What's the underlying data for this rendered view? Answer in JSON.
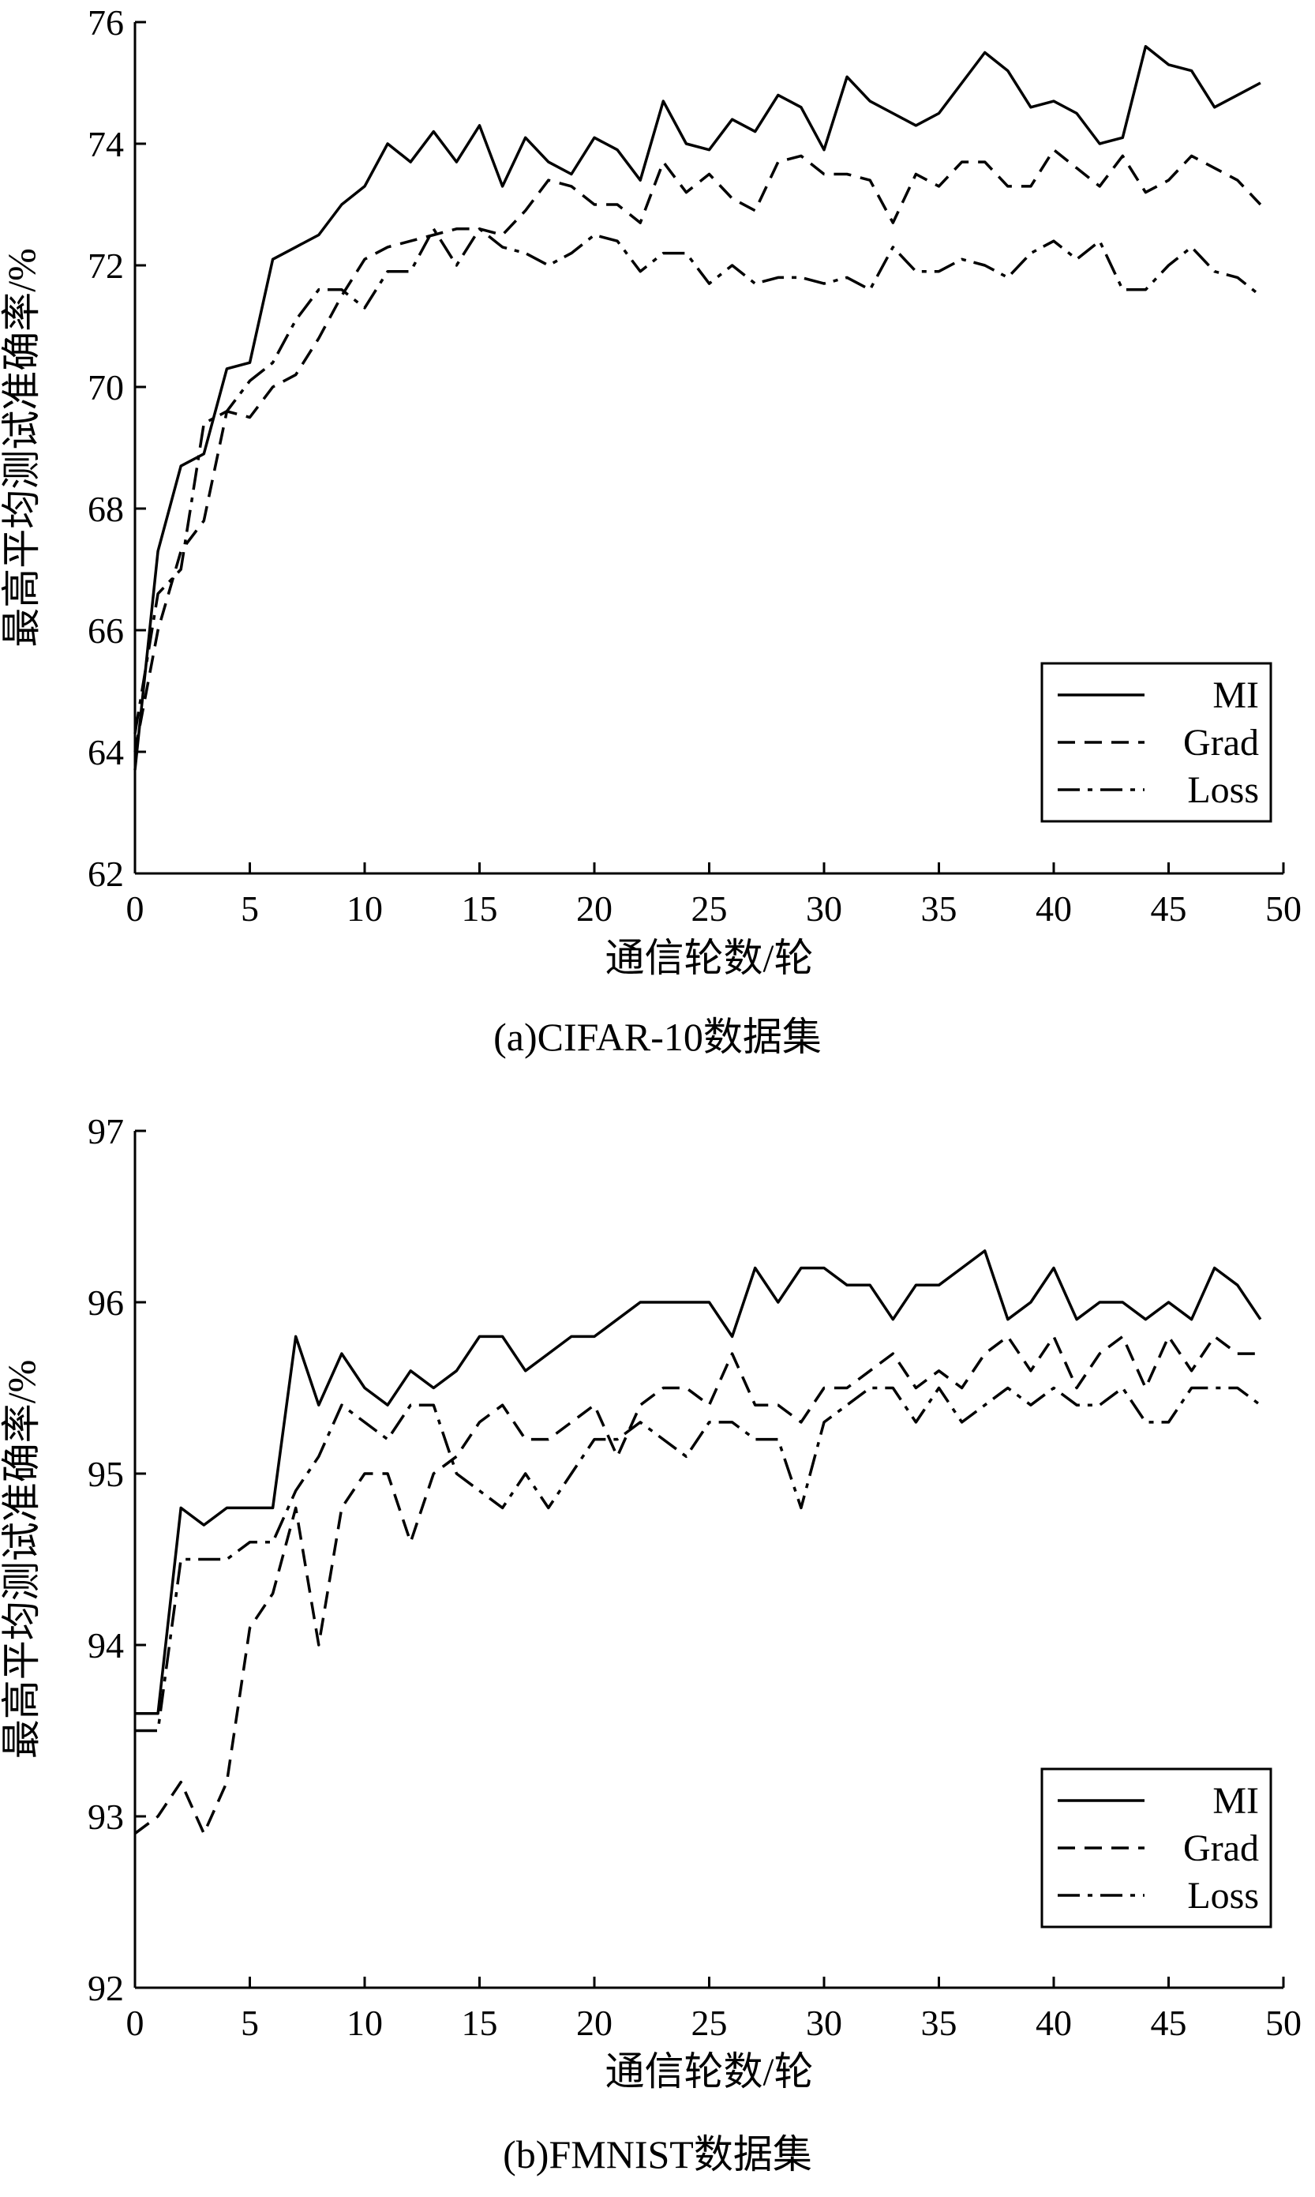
{
  "chart_data": [
    {
      "type": "line",
      "caption": "(a)CIFAR-10数据集",
      "xlabel": "通信轮数/轮",
      "ylabel": "最高平均测试准确率/%",
      "xlim": [
        0,
        50
      ],
      "ylim": [
        62,
        76
      ],
      "xticks": [
        "0",
        "5",
        "10",
        "15",
        "20",
        "25",
        "30",
        "35",
        "40",
        "45",
        "50"
      ],
      "yticks": [
        "62",
        "64",
        "66",
        "68",
        "70",
        "72",
        "74",
        "76"
      ],
      "legend_position": "bottom-right",
      "series": [
        {
          "name": "MI",
          "style": "solid",
          "values": [
            63.7,
            67.3,
            68.7,
            68.9,
            70.3,
            70.4,
            72.1,
            72.3,
            72.5,
            73.0,
            73.3,
            74.0,
            73.7,
            74.2,
            73.7,
            74.3,
            73.3,
            74.1,
            73.7,
            73.5,
            74.1,
            73.9,
            73.4,
            74.7,
            74.0,
            73.9,
            74.4,
            74.2,
            74.8,
            74.6,
            73.9,
            75.1,
            74.7,
            74.5,
            74.3,
            74.5,
            75.0,
            75.5,
            75.2,
            74.6,
            74.7,
            74.5,
            74.0,
            74.1,
            75.6,
            75.3,
            75.2,
            74.6,
            74.8,
            75.0
          ]
        },
        {
          "name": "Grad",
          "style": "dashed",
          "values": [
            64.0,
            66.0,
            67.3,
            67.8,
            69.6,
            69.5,
            70.0,
            70.2,
            70.8,
            71.5,
            72.1,
            72.3,
            72.4,
            72.5,
            72.6,
            72.6,
            72.5,
            72.9,
            73.4,
            73.3,
            73.0,
            73.0,
            72.7,
            73.7,
            73.2,
            73.5,
            73.1,
            72.9,
            73.7,
            73.8,
            73.5,
            73.5,
            73.4,
            72.7,
            73.5,
            73.3,
            73.7,
            73.7,
            73.3,
            73.3,
            73.9,
            73.6,
            73.3,
            73.8,
            73.2,
            73.4,
            73.8,
            73.6,
            73.4,
            73.0
          ]
        },
        {
          "name": "Loss",
          "style": "dashdot",
          "values": [
            64.3,
            66.6,
            67.0,
            69.4,
            69.6,
            70.1,
            70.4,
            71.1,
            71.6,
            71.6,
            71.3,
            71.9,
            71.9,
            72.6,
            72.0,
            72.6,
            72.3,
            72.2,
            72.0,
            72.2,
            72.5,
            72.4,
            71.9,
            72.2,
            72.2,
            71.7,
            72.0,
            71.7,
            71.8,
            71.8,
            71.7,
            71.8,
            71.6,
            72.3,
            71.9,
            71.9,
            72.1,
            72.0,
            71.8,
            72.2,
            72.4,
            72.1,
            72.4,
            71.6,
            71.6,
            72.0,
            72.3,
            71.9,
            71.8,
            71.5
          ]
        }
      ]
    },
    {
      "type": "line",
      "caption": "(b)FMNIST数据集",
      "xlabel": "通信轮数/轮",
      "ylabel": "最高平均测试准确率/%",
      "xlim": [
        0,
        50
      ],
      "ylim": [
        92,
        97
      ],
      "xticks": [
        "0",
        "5",
        "10",
        "15",
        "20",
        "25",
        "30",
        "35",
        "40",
        "45",
        "50"
      ],
      "yticks": [
        "92",
        "93",
        "94",
        "95",
        "96",
        "97"
      ],
      "legend_position": "bottom-right",
      "series": [
        {
          "name": "MI",
          "style": "solid",
          "values": [
            93.6,
            93.6,
            94.8,
            94.7,
            94.8,
            94.8,
            94.8,
            95.8,
            95.4,
            95.7,
            95.5,
            95.4,
            95.6,
            95.5,
            95.6,
            95.8,
            95.8,
            95.6,
            95.7,
            95.8,
            95.8,
            95.9,
            96.0,
            96.0,
            96.0,
            96.0,
            95.8,
            96.2,
            96.0,
            96.2,
            96.2,
            96.1,
            96.1,
            95.9,
            96.1,
            96.1,
            96.2,
            96.3,
            95.9,
            96.0,
            96.2,
            95.9,
            96.0,
            96.0,
            95.9,
            96.0,
            95.9,
            96.2,
            96.1,
            95.9
          ]
        },
        {
          "name": "Grad",
          "style": "dashed",
          "values": [
            92.9,
            93.0,
            93.2,
            92.9,
            93.2,
            94.1,
            94.3,
            94.8,
            94.0,
            94.8,
            95.0,
            95.0,
            94.6,
            95.0,
            95.1,
            95.3,
            95.4,
            95.2,
            95.2,
            95.3,
            95.4,
            95.1,
            95.4,
            95.5,
            95.5,
            95.4,
            95.7,
            95.4,
            95.4,
            95.3,
            95.5,
            95.5,
            95.6,
            95.7,
            95.5,
            95.6,
            95.5,
            95.7,
            95.8,
            95.6,
            95.8,
            95.5,
            95.7,
            95.8,
            95.5,
            95.8,
            95.6,
            95.8,
            95.7,
            95.7
          ]
        },
        {
          "name": "Loss",
          "style": "dashdot",
          "values": [
            93.5,
            93.5,
            94.5,
            94.5,
            94.5,
            94.6,
            94.6,
            94.9,
            95.1,
            95.4,
            95.3,
            95.2,
            95.4,
            95.4,
            95.0,
            94.9,
            94.8,
            95.0,
            94.8,
            95.0,
            95.2,
            95.2,
            95.3,
            95.2,
            95.1,
            95.3,
            95.3,
            95.2,
            95.2,
            94.8,
            95.3,
            95.4,
            95.5,
            95.5,
            95.3,
            95.5,
            95.3,
            95.4,
            95.5,
            95.4,
            95.5,
            95.4,
            95.4,
            95.5,
            95.3,
            95.3,
            95.5,
            95.5,
            95.5,
            95.4
          ]
        }
      ]
    }
  ]
}
